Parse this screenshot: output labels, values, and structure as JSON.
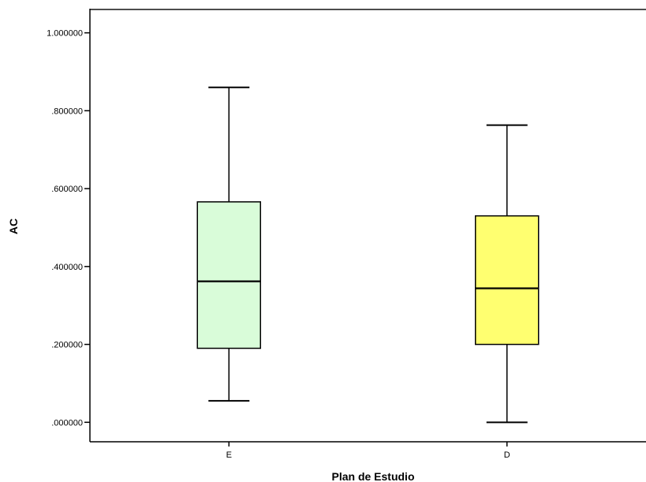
{
  "chart_data": {
    "type": "boxplot",
    "xlabel": "Plan de Estudio",
    "ylabel": "AC",
    "ylim": [
      -0.05,
      1.06
    ],
    "y_ticks": [
      0.0,
      0.2,
      0.4,
      0.6,
      0.8,
      1.0
    ],
    "y_tick_labels": [
      ".000000",
      ".200000",
      ".400000",
      ".600000",
      ".800000",
      "1.000000"
    ],
    "grid": false,
    "categories": [
      "E",
      "D"
    ],
    "boxes": [
      {
        "category": "E",
        "min": 0.055,
        "q1": 0.19,
        "median": 0.362,
        "q3": 0.566,
        "max": 0.86,
        "color": "#d9fcd9"
      },
      {
        "category": "D",
        "min": 0.0,
        "q1": 0.2,
        "median": 0.344,
        "q3": 0.53,
        "max": 0.763,
        "color": "#ffff70"
      }
    ]
  }
}
